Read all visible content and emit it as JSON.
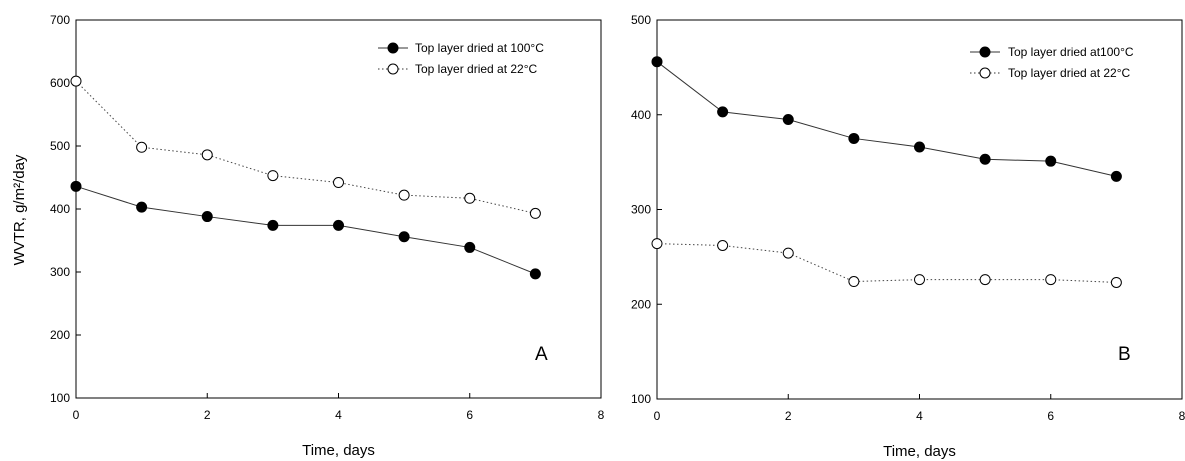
{
  "chart_data": [
    {
      "type": "line",
      "panel_label": "A",
      "xlabel": "Time, days",
      "ylabel": "WVTR, g/m²/day",
      "xlim": [
        0,
        8
      ],
      "ylim": [
        100,
        700
      ],
      "xticks": [
        0,
        2,
        4,
        6,
        8
      ],
      "yticks": [
        100,
        200,
        300,
        400,
        500,
        600,
        700
      ],
      "legend_position": "top-right",
      "series": [
        {
          "name": "Top layer dried at 100°C",
          "marker": "filled",
          "line": "solid",
          "x": [
            0,
            1,
            2,
            3,
            4,
            5,
            6,
            7
          ],
          "y": [
            436,
            403,
            388,
            374,
            374,
            356,
            339,
            297
          ]
        },
        {
          "name": "Top layer dried at 22°C",
          "marker": "open",
          "line": "dotted",
          "x": [
            0,
            1,
            2,
            3,
            4,
            5,
            6,
            7
          ],
          "y": [
            603,
            498,
            486,
            453,
            442,
            422,
            417,
            393
          ]
        }
      ]
    },
    {
      "type": "line",
      "panel_label": "B",
      "xlabel": "Time, days",
      "ylabel": "",
      "xlim": [
        0,
        8
      ],
      "ylim": [
        100,
        500
      ],
      "xticks": [
        0,
        2,
        4,
        6,
        8
      ],
      "yticks": [
        100,
        200,
        300,
        400,
        500
      ],
      "legend_position": "top-right",
      "series": [
        {
          "name": "Top layer dried at100°C",
          "marker": "filled",
          "line": "solid",
          "x": [
            0,
            1,
            2,
            3,
            4,
            5,
            6,
            7
          ],
          "y": [
            456,
            403,
            395,
            375,
            366,
            353,
            351,
            335
          ]
        },
        {
          "name": "Top layer dried at 22°C",
          "marker": "open",
          "line": "dotted",
          "x": [
            0,
            1,
            2,
            3,
            4,
            5,
            6,
            7
          ],
          "y": [
            264,
            262,
            254,
            224,
            226,
            226,
            226,
            223
          ]
        }
      ]
    }
  ]
}
